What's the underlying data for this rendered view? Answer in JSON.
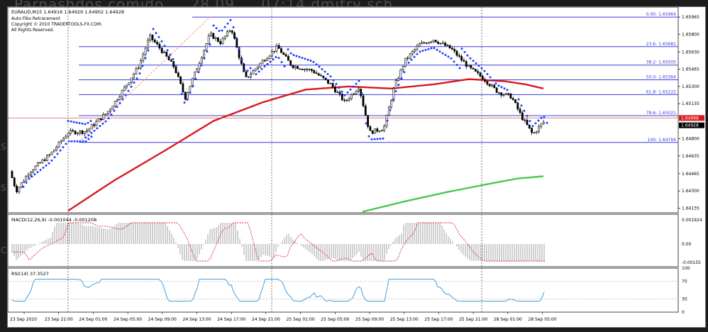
{
  "background_title": [
    "Parnashdos comido",
    "28.09",
    "07:14 dmitry sch"
  ],
  "chart_header": {
    "symbol_line": "EURAUD,M15  1.64916 1.64929 1.64902 1.64928",
    "indicator_name": "Auto Fibo Retracement",
    "copyright": "Copyright © 2010 TRADERTOOLS-FX.COM.",
    "rights": "All Rights Reserved."
  },
  "fibo_levels": [
    {
      "label": "0.00- 1.65964",
      "price": 1.65964
    },
    {
      "label": "23.6- 1.65681",
      "price": 1.65681
    },
    {
      "label": "38.2- 1.65505",
      "price": 1.65505
    },
    {
      "label": "50.0- 1.65364",
      "price": 1.65364
    },
    {
      "label": "61.8- 1.65222",
      "price": 1.65222
    },
    {
      "label": "78.6- 1.65021",
      "price": 1.65021
    },
    {
      "label": "100- 1.64764",
      "price": 1.64764
    }
  ],
  "price_axis": {
    "ticks": [
      "1.65965",
      "1.65800",
      "1.65630",
      "1.65465",
      "1.65300",
      "1.65135",
      "1.64800",
      "1.64635",
      "1.64465",
      "1.64300",
      "1.64135"
    ],
    "current_price": "1.64928",
    "red_line_price": "1.64998",
    "min": 1.6409,
    "max": 1.6606
  },
  "macd_panel": {
    "label": "MACD(12,26,9) -0.001044 -0.001208",
    "ticks": [
      "0.001924",
      "0.00",
      "-0.00155"
    ]
  },
  "rsi_panel": {
    "label": "RSI(14) 37.3527",
    "ticks": [
      "100",
      "70",
      "30",
      "0"
    ]
  },
  "time_axis": [
    "23 Sep 2020",
    "23 Sep 21:00",
    "24 Sep 01:00",
    "24 Sep 05:00",
    "24 Sep 09:00",
    "24 Sep 13:00",
    "24 Sep 17:00",
    "24 Sep 21:00",
    "25 Sep 01:00",
    "25 Sep 05:00",
    "25 Sep 09:00",
    "25 Sep 13:00",
    "25 Sep 17:00",
    "25 Sep 21:00",
    "28 Sep 01:00",
    "28 Sep 05:00"
  ],
  "colors": {
    "candles": "#000000",
    "sar": "#1f3fff",
    "ma_red": "#d9191c",
    "ma_green": "#4cc84c",
    "fibo": "#3b3bd8",
    "fibo_diag": "#f08a6a",
    "rsi": "#3fa0e0",
    "macd_signal": "#e02020",
    "macd_hist": "#b0b0b0"
  },
  "side_marks": [
    "S",
    "S",
    "C"
  ]
}
